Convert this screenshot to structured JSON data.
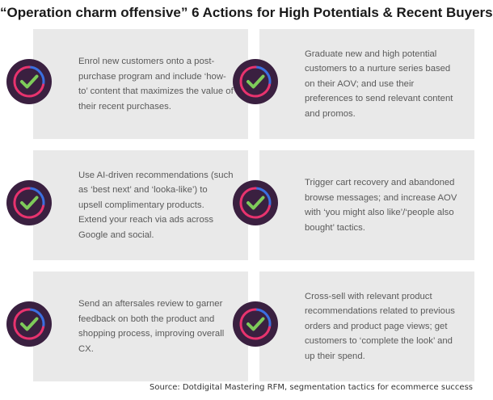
{
  "title": "“Operation charm offensive” 6 Actions for High Potentials & Recent Buyers",
  "cards": [
    {
      "text": "Enrol new customers onto a post-purchase program and include ‘how-to’ content that maximizes the value of their recent purchases."
    },
    {
      "text": "Graduate new and high potential customers to a nurture series based on their AOV; and use their preferences to send relevant content and promos."
    },
    {
      "text": "Use AI-driven recommendations (such as ‘best next’ and ‘looka-like’) to upsell complimentary products. Extend your reach via ads across Google and social."
    },
    {
      "text": "Trigger cart recovery and abandoned browse messages; and increase AOV with ‘you might also like’/‘people also bought’ tactics."
    },
    {
      "text": "Send an aftersales review to garner feedback on both the product and shopping process, improving overall CX."
    },
    {
      "text": "Cross-sell with relevant product recommendations related to previous orders and product page views; get customers to ‘complete the look’ and up their spend."
    }
  ],
  "icon": "check-circle-icon",
  "colors": {
    "card_bg": "#e9e9e9",
    "badge_bg": "#3a2040",
    "ring_pink": "#e8336e",
    "ring_blue": "#3b6fe0",
    "check_green": "#7ecb5a"
  },
  "source": "Source: Dotdigital Mastering RFM, segmentation tactics for ecommerce success"
}
